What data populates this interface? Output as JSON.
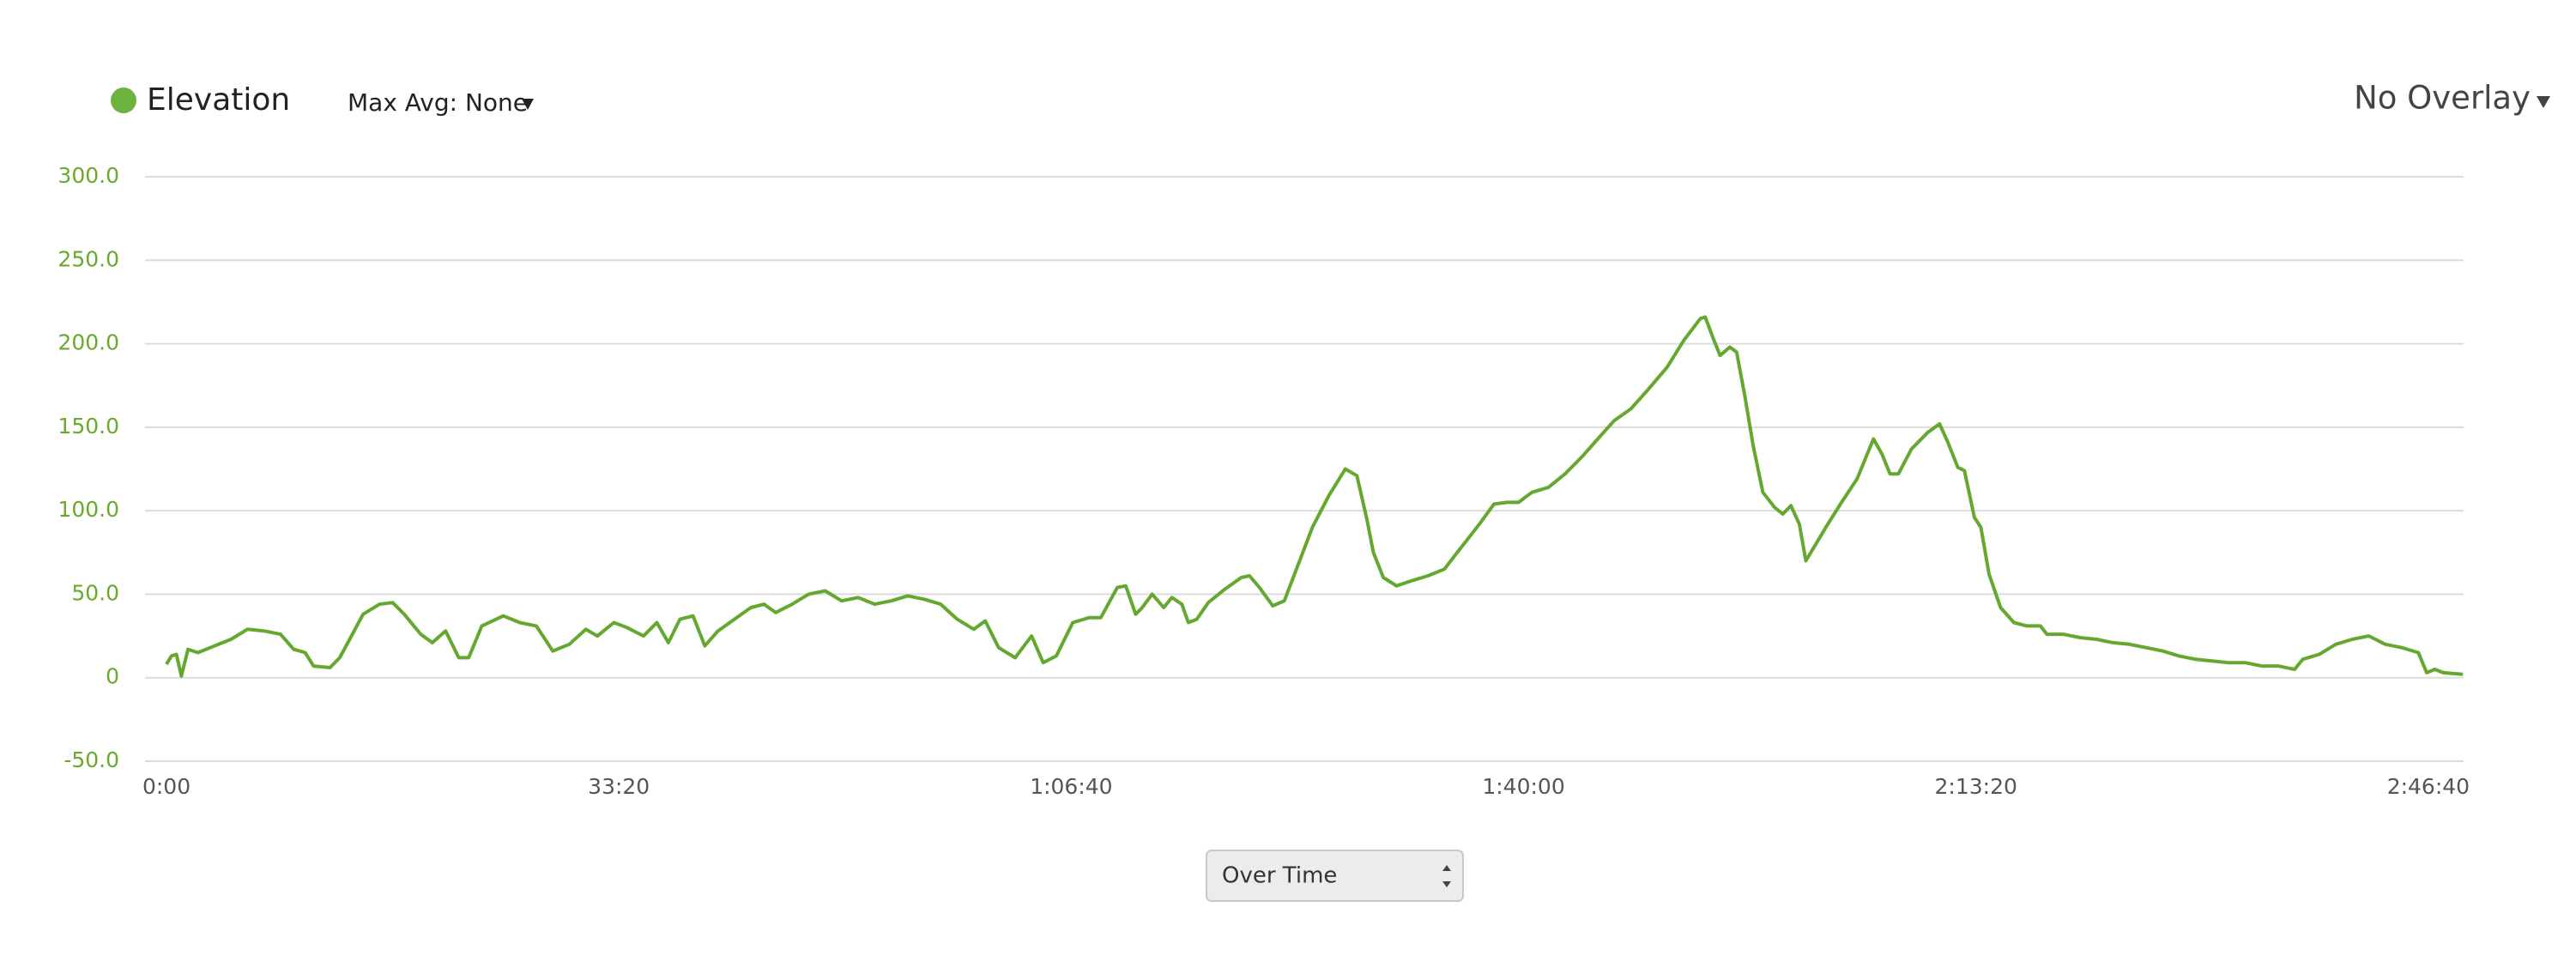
{
  "chart_data": {
    "type": "line",
    "x": [
      0,
      22,
      44,
      66,
      95,
      139,
      212,
      285,
      358,
      431,
      504,
      562,
      613,
      650,
      723,
      766,
      810,
      869,
      942,
      1000,
      1051,
      1124,
      1175,
      1234,
      1292,
      1336,
      1394,
      1489,
      1562,
      1635,
      1708,
      1781,
      1854,
      1905,
      1978,
      2036,
      2109,
      2168,
      2219,
      2270,
      2328,
      2380,
      2438,
      2511,
      2584,
      2642,
      2693,
      2766,
      2839,
      2912,
      2985,
      3058,
      3131,
      3204,
      3277,
      3350,
      3423,
      3496,
      3569,
      3620,
      3679,
      3752,
      3825,
      3876,
      3934,
      4007,
      4080,
      4131,
      4204,
      4241,
      4285,
      4314,
      4358,
      4409,
      4445,
      4489,
      4518,
      4555,
      4606,
      4679,
      4752,
      4788,
      4832,
      4891,
      4942,
      4993,
      5066,
      5139,
      5212,
      5263,
      5307,
      5336,
      5380,
      5438,
      5504,
      5577,
      5650,
      5701,
      5759,
      5810,
      5869,
      5927,
      5978,
      6037,
      6110,
      6183,
      6256,
      6328,
      6401,
      6474,
      6547,
      6635,
      6708,
      6781,
      6803,
      6839,
      6869,
      6912,
      6942,
      6978,
      7015,
      7058,
      7110,
      7146,
      7182,
      7219,
      7248,
      7292,
      7336,
      7401,
      7474,
      7547,
      7584,
      7620,
      7657,
      7715,
      7788,
      7839,
      7876,
      7920,
      7949,
      7993,
      8022,
      8058,
      8109,
      8168,
      8226,
      8285,
      8314,
      8387,
      8460,
      8533,
      8606,
      8679,
      8752,
      8825,
      8898,
      8971,
      9044,
      9117,
      9190,
      9263,
      9336,
      9409,
      9445,
      9518,
      9591,
      9664,
      9737,
      9810,
      9883,
      9956,
      9993,
      10029,
      10066,
      10153
    ],
    "series": [
      {
        "name": "Elevation",
        "color": "#65a830",
        "values": [
          8,
          13,
          14,
          1,
          17,
          15,
          19,
          23,
          29,
          28,
          26,
          17,
          15,
          7,
          6,
          12,
          23,
          38,
          44,
          45,
          38,
          26,
          21,
          28,
          12,
          12,
          31,
          37,
          33,
          31,
          16,
          20,
          29,
          25,
          33,
          30,
          25,
          33,
          21,
          35,
          37,
          19,
          28,
          35,
          42,
          44,
          39,
          44,
          50,
          52,
          46,
          48,
          44,
          46,
          49,
          47,
          44,
          35,
          29,
          34,
          18,
          12,
          25,
          9,
          13,
          33,
          36,
          36,
          54,
          55,
          38,
          42,
          50,
          42,
          48,
          44,
          33,
          35,
          45,
          53,
          60,
          61,
          54,
          43,
          46,
          64,
          90,
          109,
          125,
          121,
          95,
          75,
          60,
          55,
          58,
          61,
          65,
          74,
          84,
          93,
          104,
          105,
          105,
          111,
          114,
          122,
          132,
          143,
          154,
          161,
          172,
          186,
          202,
          215,
          216,
          203,
          193,
          198,
          195,
          169,
          139,
          111,
          102,
          98,
          103,
          92,
          70,
          80,
          90,
          104,
          119,
          143,
          134,
          122,
          122,
          137,
          147,
          152,
          141,
          126,
          124,
          96,
          90,
          62,
          42,
          33,
          31,
          31,
          26,
          26,
          24,
          23,
          21,
          20,
          18,
          16,
          13,
          11,
          10,
          9,
          9,
          7,
          7,
          5,
          11,
          14,
          20,
          23,
          25,
          20,
          18,
          15,
          3,
          5,
          3,
          2
        ]
      }
    ],
    "xlim": [
      -95,
      10156
    ],
    "xticks": [
      {
        "value": 0,
        "label": "0:00"
      },
      {
        "value": 2000,
        "label": "33:20"
      },
      {
        "value": 4000,
        "label": "1:06:40"
      },
      {
        "value": 6000,
        "label": "1:40:00"
      },
      {
        "value": 8000,
        "label": "2:13:20"
      },
      {
        "value": 10000,
        "label": "2:46:40"
      }
    ],
    "ylim": [
      -50,
      300
    ],
    "yticks": [
      {
        "value": -50,
        "label": "-50.0"
      },
      0,
      {
        "value": 50,
        "label": "50.0"
      },
      {
        "value": 100,
        "label": "100.0"
      },
      {
        "value": 150,
        "label": "150.0"
      },
      {
        "value": 200,
        "label": "200.0"
      },
      {
        "value": 250,
        "label": "250.0"
      },
      {
        "value": 300,
        "label": "300.0"
      }
    ],
    "grid": true
  },
  "controls": {
    "max_avg": "Max Avg: None",
    "overlay": "No Overlay",
    "x_mode": "Over Time"
  }
}
